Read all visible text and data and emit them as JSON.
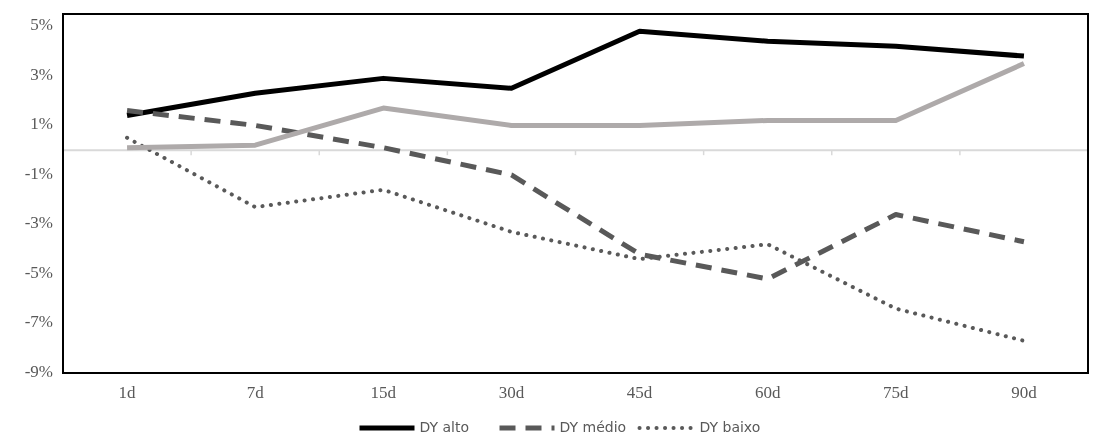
{
  "chart_data": {
    "type": "line",
    "categories": [
      "1d",
      "7d",
      "15d",
      "30d",
      "45d",
      "60d",
      "75d",
      "90d"
    ],
    "ylim": [
      -9,
      5.5
    ],
    "yticks": [
      {
        "value": 5,
        "label": "5%"
      },
      {
        "value": 3,
        "label": "3%"
      },
      {
        "value": 1,
        "label": "1%"
      },
      {
        "value": -1,
        "label": "-1%"
      },
      {
        "value": -3,
        "label": "-3%"
      },
      {
        "value": -5,
        "label": "-5%"
      },
      {
        "value": -7,
        "label": "-7%"
      },
      {
        "value": -9,
        "label": "-9%"
      }
    ],
    "legend": "bottom",
    "grid": false,
    "marker": "none",
    "series": [
      {
        "name": "DY alto",
        "color": "#000000",
        "line_style": "solid",
        "values": [
          1.4,
          2.3,
          2.9,
          2.5,
          4.8,
          4.4,
          4.2,
          3.8
        ]
      },
      {
        "name": "DY médio",
        "color": "#595959",
        "line_style": "dashed",
        "values": [
          1.6,
          1.0,
          0.1,
          -1.0,
          -4.2,
          -5.2,
          -2.6,
          -3.7
        ]
      },
      {
        "name": "DY baixo",
        "color": "#595959",
        "line_style": "dotted",
        "values": [
          0.5,
          -2.3,
          -1.6,
          -3.3,
          -4.4,
          -3.8,
          -6.4,
          -7.7
        ]
      },
      {
        "color": "#aeaaaa",
        "line_style": "solid",
        "values": [
          0.1,
          0.2,
          1.7,
          1.0,
          1.0,
          1.2,
          1.2,
          3.5
        ]
      }
    ]
  }
}
